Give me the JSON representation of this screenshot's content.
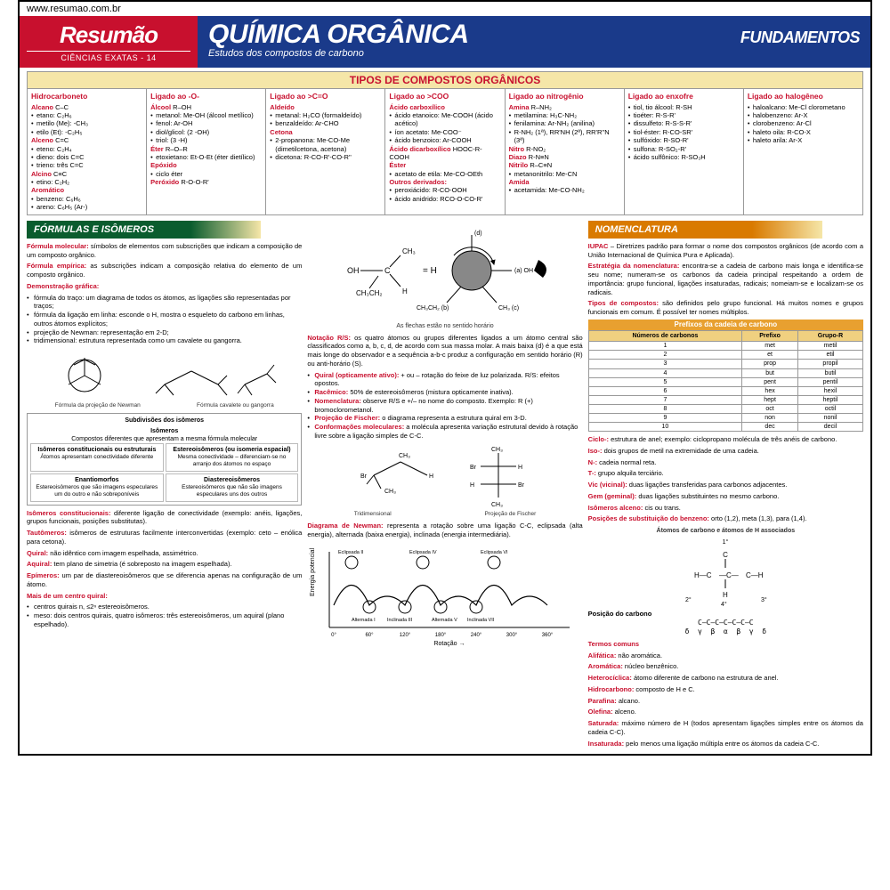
{
  "url": "www.resumao.com.br",
  "header": {
    "brand": "Resumão",
    "series": "CIÊNCIAS EXATAS - 14",
    "title": "QUÍMICA ORGÂNICA",
    "fund": "FUNDAMENTOS",
    "subtitle": "Estudos dos compostos de carbono"
  },
  "tipos": {
    "title": "TIPOS DE COMPOSTOS ORGÂNICOS",
    "cols": [
      {
        "head": "Hidrocarboneto",
        "groups": [
          {
            "name": "Alcano",
            "formula": "C–C",
            "items": [
              "etano: C₂H₆",
              "metilo (Me): -CH₃",
              "etilo (Et): -C₂H₅"
            ]
          },
          {
            "name": "Alceno",
            "formula": "C=C",
            "items": [
              "eteno: C₂H₄",
              "dieno: dois C=C",
              "trieno: três C=C"
            ]
          },
          {
            "name": "Alcino",
            "formula": "C≡C",
            "items": [
              "etino: C₂H₂"
            ]
          },
          {
            "name": "Aromático",
            "formula": "",
            "items": [
              "benzeno: C₆H₆",
              "areno: C₆H₅ (Ar-)"
            ]
          }
        ]
      },
      {
        "head": "Ligado ao -O-",
        "groups": [
          {
            "name": "Álcool",
            "formula": "R–OH",
            "items": [
              "metanol: Me-OH (álcool metílico)",
              "fenol: Ar-OH",
              "diol/glicol: (2 -OH)",
              "triol: (3 -H)"
            ]
          },
          {
            "name": "Éter",
            "formula": "R–O–R",
            "items": [
              "etoxietano: Et-O-Et (éter dietílico)"
            ]
          },
          {
            "name": "Epóxido",
            "formula": "",
            "items": [
              "ciclo éter"
            ]
          },
          {
            "name": "Peróxido",
            "formula": "R-O-O-R'",
            "items": []
          }
        ]
      },
      {
        "head": "Ligado ao >C=O",
        "groups": [
          {
            "name": "Aldeído",
            "formula": "",
            "items": [
              "metanal: H₂CO (formaldeído)",
              "benzaldeído: Ar-CHO"
            ]
          },
          {
            "name": "Cetona",
            "formula": "",
            "items": [
              "2-propanona: Me-CO-Me (dimetilcetona, acetona)",
              "dicetona: R-CO-R'-CO-R''"
            ]
          }
        ]
      },
      {
        "head": "Ligado ao >COO",
        "groups": [
          {
            "name": "Ácido carboxílico",
            "formula": "",
            "items": [
              "ácido etanoico: Me-COOH (ácido acético)",
              "íon acetato: Me-COO⁻",
              "ácido benzoico: Ar-COOH"
            ]
          },
          {
            "name": "Ácido dicarboxílico",
            "formula": "HOOC-R-COOH",
            "items": []
          },
          {
            "name": "Éster",
            "formula": "",
            "items": [
              "acetato de etila: Me-CO-OEth"
            ]
          },
          {
            "name": "Outros derivados:",
            "formula": "",
            "items": [
              "peroxiácido: R-CO-OOH",
              "ácido anidrido: RCO-O-CO-R'"
            ]
          }
        ]
      },
      {
        "head": "Ligado ao nitrogênio",
        "groups": [
          {
            "name": "Amina",
            "formula": "R–NH₂",
            "items": [
              "metilamina: H₃C-NH₂",
              "fenilamina: Ar-NH₂ (anilina)",
              "R-NH₂ (1ª), RR'NH (2ª), RR'R''N (3ª)"
            ]
          },
          {
            "name": "Nitro",
            "formula": "R-NO₂",
            "items": []
          },
          {
            "name": "Diazo",
            "formula": "R-N≡N",
            "items": []
          },
          {
            "name": "Nitrilo",
            "formula": "R–C≡N",
            "items": [
              "metanonitrilo: Me-CN"
            ]
          },
          {
            "name": "Amida",
            "formula": "",
            "items": [
              "acetamida: Me-CO-NH₂"
            ]
          }
        ]
      },
      {
        "head": "Ligado ao enxofre",
        "groups": [
          {
            "name": "",
            "formula": "",
            "items": [
              "tiol, tio álcool: R-SH",
              "tioéter: R-S-R'",
              "dissulfeto: R-S-S-R'",
              "tiol-éster: R-CO-SR'",
              "sulfóxido: R-SO-R'",
              "sulfona: R-SO₂-R'",
              "ácido sulfônico: R-SO₃H"
            ]
          }
        ]
      },
      {
        "head": "Ligado ao halogêneo",
        "groups": [
          {
            "name": "",
            "formula": "",
            "items": [
              "haloalcano: Me-Cl clorometano",
              "halobenzeno: Ar-X",
              "clorobenzeno: Ar-Cl",
              "haleto oila: R-CO-X",
              "haleto arila: Ar-X"
            ]
          }
        ]
      }
    ]
  },
  "formulas": {
    "banner": "FÓRMULAS E ISÔMEROS",
    "p1": "Fórmula molecular:",
    "p1t": " símbolos de elementos com subscrições que indicam a composição de um composto orgânico.",
    "p2": "Fórmula empírica:",
    "p2t": " as subscrições indicam a composição relativa do elemento de um composto orgânico.",
    "p3": "Demonstração gráfica:",
    "bullets": [
      "fórmula do traço: um diagrama de todos os átomos, as ligações são representadas por traços;",
      "fórmula da ligação em linha: esconde o H, mostra o esqueleto do carbono em linhas, outros átomos explícitos;",
      "projeção de Newman: representação em 2-D;",
      "tridimensional: estrutura representada como um cavalete ou gangorra."
    ],
    "newman_cap1": "Fórmula da projeção de Newman",
    "newman_cap2": "Fórmula cavalete ou gangorra",
    "box": {
      "title": "Subdivisões dos isômeros",
      "sub": "Isômeros",
      "desc": "Compostos diferentes que apresentam a mesma fórmula molecular",
      "cells": [
        {
          "t": "Isômeros constitucionais ou estruturais",
          "d": "Átomos apresentam conectividade diferente"
        },
        {
          "t": "Estereoisômeros (ou isomeria espacial)",
          "d": "Mesma conectividade – diferenciam-se no arranjo dos átomos no espaço"
        },
        {
          "t": "Enantiomorfos",
          "d": "Estereoisômeros que são imagens especulares um do outro e não sobreponíveis"
        },
        {
          "t": "Diastereoisômeros",
          "d": "Estereoisômeros que não são imagens especulares uns dos outros"
        }
      ]
    },
    "below": [
      {
        "t": "Isômeros constitucionais:",
        "d": " diferente ligação de conectividade (exemplo: anéis, ligações, grupos funcionais, posições substitutas)."
      },
      {
        "t": "Tautômeros:",
        "d": " isômeros de estruturas facilmente interconvertidas (exemplo: ceto – enólica para cetona)."
      },
      {
        "t": "Quiral:",
        "d": " não idêntico com imagem espelhada, assimétrico."
      },
      {
        "t": "Aquiral:",
        "d": " tem plano de simetria (é sobreposto na imagem espelhada)."
      },
      {
        "t": "Epímeros:",
        "d": " um par de diastereoisômeros que se diferencia apenas na configuração de um átomo."
      },
      {
        "t": "Mais de um centro quiral:",
        "d": ""
      }
    ],
    "below2": [
      "centros quirais n, ≤2ⁿ estereoisômeros.",
      "meso: dois centros quirais, quatro isômeros: três estereoisômeros, um aquiral (plano espelhado)."
    ]
  },
  "center": {
    "arrows": "As flechas estão no sentido horário",
    "notacao_t": "Notação R/S:",
    "notacao": " os quatro átomos ou grupos diferentes ligados a um átomo central são classificados como a, b, c, d, de acordo com sua massa molar. A mais baixa (d) é a que está mais longe do observador e a sequência a-b-c produz a configuração em sentido horário (R) ou anti-horário (S).",
    "items": [
      {
        "t": "Quiral (opticamente ativo):",
        "d": " + ou – rotação do feixe de luz polarizada. R/S: efeitos opostos."
      },
      {
        "t": "Racêmico:",
        "d": " 50% de estereoisômeros (mistura opticamente inativa)."
      },
      {
        "t": "Nomenclatura:",
        "d": " observe R/S e +/– no nome do composto. Exemplo: R (+) bromoclorometanol."
      },
      {
        "t": "Projeção de Fischer:",
        "d": " o diagrama representa a estrutura quiral em 3-D."
      },
      {
        "t": "Conformações moleculares:",
        "d": " a molécula apresenta variação estrutural devido à rotação livre sobre a ligação simples de C-C."
      }
    ],
    "tridim": "Tridimensional",
    "fischer": "Projeção de Fischer",
    "newman_t": "Diagrama de Newman:",
    "newman": " representa a rotação sobre uma ligação C-C, eclipsada (alta energia), alternada (baixa energia), inclinada (energia intermediária).",
    "graph": {
      "ylabel": "Energia potencial",
      "xlabel": "Rotação →",
      "xticks": [
        "0°",
        "60°",
        "120°",
        "180°",
        "240°",
        "300°",
        "360°"
      ],
      "labels": [
        "Eclipsada II",
        "Eclipsada IV",
        "Eclipsada VI",
        "Alternada I",
        "Inclinada III",
        "Alternada V",
        "Inclinada VII"
      ]
    }
  },
  "nomenclatura": {
    "banner": "NOMENCLATURA",
    "iupac_t": "IUPAC",
    "iupac": " – Diretrizes padrão para formar o nome dos compostos orgânicos (de acordo com a União Internacional de Química Pura e Aplicada).",
    "estrat_t": "Estratégia da nomenclatura:",
    "estrat": " encontra-se a cadeia de carbono mais longa e identifica-se seu nome; numeram-se os carbonos da cadeia principal respeitando a ordem de importância: grupo funcional, ligações insaturadas, radicais; nomeiam-se e localizam-se os radicais.",
    "tipos_t": "Tipos de compostos:",
    "tipos": " são definidos pelo grupo funcional. Há muitos nomes e grupos funcionais em comum. É possível ter nomes múltiplos.",
    "prefix": {
      "title": "Prefixos da cadeia de carbono",
      "headers": [
        "Números de carbonos",
        "Prefixo",
        "Grupo-R"
      ],
      "rows": [
        [
          "1",
          "met",
          "metil"
        ],
        [
          "2",
          "et",
          "etil"
        ],
        [
          "3",
          "prop",
          "propil"
        ],
        [
          "4",
          "but",
          "butil"
        ],
        [
          "5",
          "pent",
          "pentil"
        ],
        [
          "6",
          "hex",
          "hexil"
        ],
        [
          "7",
          "hept",
          "heptil"
        ],
        [
          "8",
          "oct",
          "octil"
        ],
        [
          "9",
          "non",
          "nonil"
        ],
        [
          "10",
          "dec",
          "decil"
        ]
      ]
    },
    "terms": [
      {
        "t": "Ciclo-:",
        "d": " estrutura de anel; exemplo: ciclopropano molécula de três anéis de carbono."
      },
      {
        "t": "Iso-:",
        "d": " dois grupos de metil na extremidade de uma cadeia."
      },
      {
        "t": "N-:",
        "d": " cadeia normal reta."
      },
      {
        "t": "T-:",
        "d": " grupo alquila terciário."
      },
      {
        "t": "Vic (vicinal):",
        "d": " duas ligações transferidas para carbonos adjacentes."
      },
      {
        "t": "Gem (geminal):",
        "d": " duas ligações substituintes no mesmo carbono."
      },
      {
        "t": "Isômeros alceno:",
        "d": " cis ou trans."
      },
      {
        "t": "Posições de substituição do benzeno:",
        "d": " orto (1,2), meta (1,3), para (1,4)."
      }
    ],
    "assoc_title": "Átomos de carbono e átomos de H associados",
    "poscarb": "Posição do carbono",
    "greek": "C–C–C–C–C–C–C\nδ  γ  β  α  β  γ  δ",
    "termos_h": "Termos comuns",
    "termos": [
      {
        "t": "Alifática:",
        "d": " não aromática."
      },
      {
        "t": "Aromática:",
        "d": " núcleo benzênico."
      },
      {
        "t": "Heterocíclica:",
        "d": " átomo diferente de carbono na estrutura de anel."
      },
      {
        "t": "Hidrocarbono:",
        "d": " composto de H e C."
      },
      {
        "t": "Parafina:",
        "d": " alcano."
      },
      {
        "t": "Olefina:",
        "d": " alceno."
      },
      {
        "t": "Saturada:",
        "d": " máximo número de H (todos apresentam ligações simples entre os átomos da cadeia C-C)."
      },
      {
        "t": "Insaturada:",
        "d": " pelo menos uma ligação múltipla entre os átomos da cadeia C-C."
      }
    ]
  },
  "colors": {
    "red": "#c8102e",
    "blue": "#1a3a8a",
    "green": "#0a5c2e",
    "orange": "#d97a00",
    "yellow": "#f5e6a8"
  }
}
